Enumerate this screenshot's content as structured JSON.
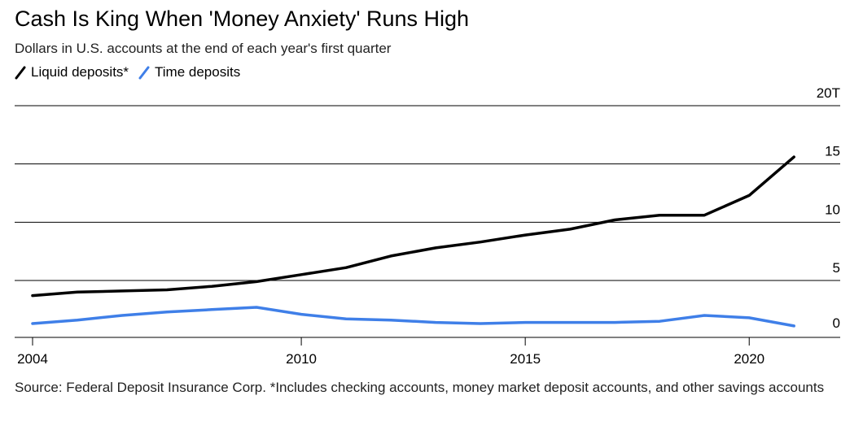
{
  "chart_data": {
    "type": "line",
    "title": "Cash Is King When 'Money Anxiety' Runs High",
    "subtitle": "Dollars in U.S. accounts at the end of each year's first quarter",
    "xlabel": "",
    "ylabel": "",
    "xlim": [
      2004,
      2021.8
    ],
    "ylim": [
      -0.6,
      20
    ],
    "x_ticks": [
      2004,
      2010,
      2015,
      2020
    ],
    "x_tick_labels": [
      "2004",
      "2010",
      "2015",
      "2020"
    ],
    "y_ticks": [
      0,
      5,
      10,
      15,
      20
    ],
    "y_tick_labels": [
      "0",
      "5",
      "10",
      "15",
      "20T"
    ],
    "y_axis_side": "right",
    "grid": "horizontal",
    "legend_position": "top-left",
    "x": [
      2004,
      2005,
      2006,
      2007,
      2008,
      2009,
      2010,
      2011,
      2012,
      2013,
      2014,
      2015,
      2016,
      2017,
      2018,
      2019,
      2020,
      2021
    ],
    "series": [
      {
        "name": "Liquid deposits*",
        "color": "#000000",
        "values": [
          3.7,
          4.0,
          4.1,
          4.2,
          4.5,
          4.9,
          5.5,
          6.1,
          7.1,
          7.8,
          8.3,
          8.9,
          9.4,
          10.2,
          10.6,
          10.6,
          12.3,
          15.6
        ]
      },
      {
        "name": "Time deposits",
        "color": "#3f7fe8",
        "values": [
          1.3,
          1.6,
          2.0,
          2.3,
          2.5,
          2.7,
          2.1,
          1.7,
          1.6,
          1.4,
          1.3,
          1.4,
          1.4,
          1.4,
          1.5,
          2.0,
          1.8,
          1.1
        ]
      }
    ],
    "source": "Source: Federal Deposit Insurance Corp. *Includes checking accounts, money market deposit accounts, and other savings accounts"
  }
}
